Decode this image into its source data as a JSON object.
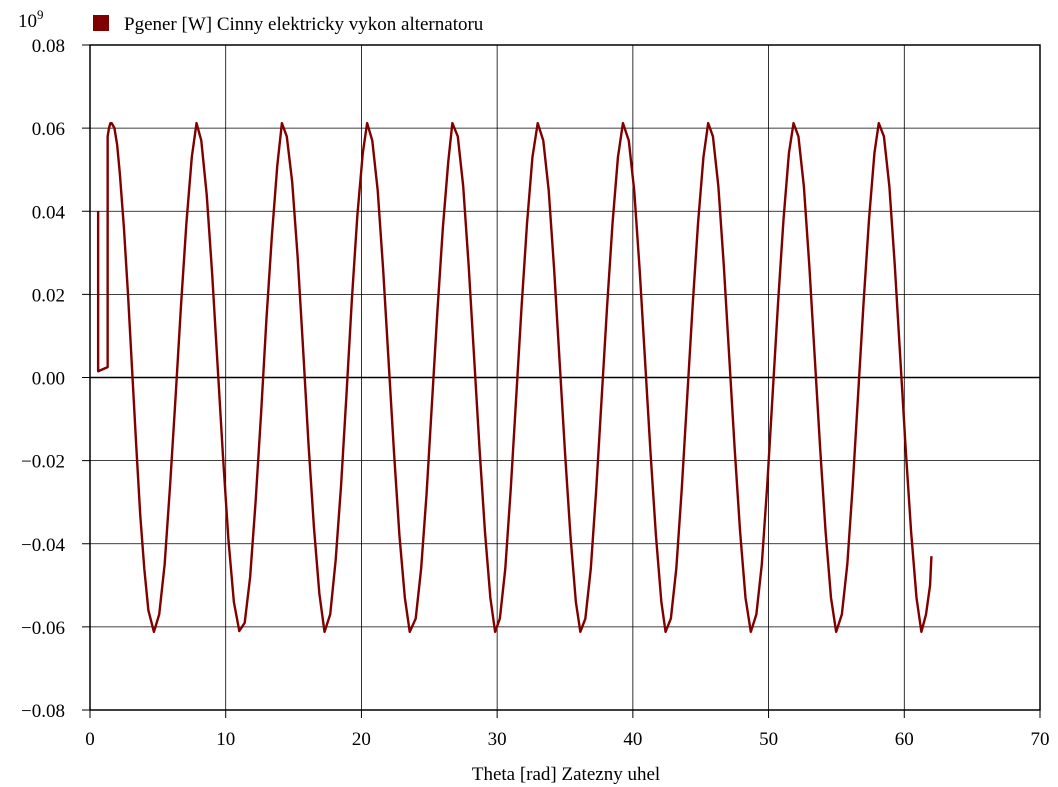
{
  "chart_data": {
    "type": "line",
    "y_multiplier": {
      "base": "10",
      "exponent": "9"
    },
    "xlabel": "Theta [rad] Zatezny uhel",
    "ylabel": "",
    "xlim": [
      0,
      70
    ],
    "ylim": [
      -0.08,
      0.08
    ],
    "x_ticks": [
      0,
      10,
      20,
      30,
      40,
      50,
      60,
      70
    ],
    "x_tick_labels": [
      "0",
      "10",
      "20",
      "30",
      "40",
      "50",
      "60",
      "70"
    ],
    "y_ticks": [
      -0.08,
      -0.06,
      -0.04,
      -0.02,
      0.0,
      0.02,
      0.04,
      0.06,
      0.08
    ],
    "y_tick_labels": [
      "−0.08",
      "−0.06",
      "−0.04",
      "−0.02",
      "0.00",
      "0.02",
      "0.04",
      "0.06",
      "0.08"
    ],
    "grid": true,
    "legend_position": "top-left",
    "series": [
      {
        "name": "Pgener [W] Cinny elektricky vykon alternatoru",
        "color": "#800000",
        "x": [
          0.6,
          0.6,
          0.6,
          1.3,
          1.3,
          1.4,
          1.5,
          1.6,
          1.8,
          2.0,
          2.2,
          2.5,
          2.8,
          3.1,
          3.4,
          3.7,
          4.0,
          4.3,
          4.71,
          5.1,
          5.5,
          5.9,
          6.3,
          6.7,
          7.1,
          7.5,
          7.85,
          8.2,
          8.6,
          9.0,
          9.4,
          9.8,
          10.2,
          10.6,
          11.0,
          11.4,
          11.8,
          12.2,
          12.6,
          13.0,
          13.4,
          13.8,
          14.14,
          14.5,
          14.9,
          15.3,
          15.7,
          16.1,
          16.5,
          16.9,
          17.28,
          17.7,
          18.1,
          18.5,
          18.9,
          19.3,
          19.7,
          20.1,
          20.42,
          20.8,
          21.2,
          21.6,
          22.0,
          22.4,
          22.8,
          23.2,
          23.56,
          24.0,
          24.4,
          24.8,
          25.2,
          25.6,
          26.0,
          26.4,
          26.7,
          27.1,
          27.5,
          27.9,
          28.3,
          28.7,
          29.1,
          29.5,
          29.85,
          30.2,
          30.6,
          31.0,
          31.4,
          31.8,
          32.2,
          32.6,
          32.99,
          33.4,
          33.8,
          34.2,
          34.6,
          35.0,
          35.4,
          35.8,
          36.13,
          36.5,
          36.9,
          37.3,
          37.7,
          38.1,
          38.5,
          38.9,
          39.27,
          39.7,
          40.1,
          40.5,
          40.9,
          41.3,
          41.7,
          42.1,
          42.41,
          42.8,
          43.2,
          43.6,
          44.0,
          44.4,
          44.8,
          45.2,
          45.55,
          45.9,
          46.3,
          46.7,
          47.1,
          47.5,
          47.9,
          48.3,
          48.69,
          49.1,
          49.5,
          49.9,
          50.3,
          50.7,
          51.1,
          51.5,
          51.84,
          52.2,
          52.6,
          53.0,
          53.4,
          53.8,
          54.2,
          54.6,
          54.98,
          55.4,
          55.8,
          56.2,
          56.6,
          57.0,
          57.4,
          57.8,
          58.12,
          58.5,
          58.9,
          59.3,
          59.7,
          60.1,
          60.5,
          60.9,
          61.26,
          61.6,
          61.9,
          62.0
        ],
        "y": [
          0.04,
          0.0015,
          0.0015,
          0.0025,
          0.058,
          0.06,
          0.0612,
          0.0612,
          0.06,
          0.056,
          0.049,
          0.036,
          0.02,
          0.002,
          -0.016,
          -0.033,
          -0.046,
          -0.056,
          -0.0612,
          -0.057,
          -0.045,
          -0.026,
          -0.005,
          0.017,
          0.037,
          0.053,
          0.0612,
          0.057,
          0.044,
          0.025,
          0.003,
          -0.019,
          -0.039,
          -0.054,
          -0.061,
          -0.059,
          -0.048,
          -0.03,
          -0.009,
          0.014,
          0.034,
          0.051,
          0.0612,
          0.058,
          0.047,
          0.029,
          0.007,
          -0.016,
          -0.036,
          -0.052,
          -0.0612,
          -0.057,
          -0.044,
          -0.026,
          -0.004,
          0.019,
          0.039,
          0.054,
          0.0612,
          0.057,
          0.045,
          0.026,
          0.004,
          -0.018,
          -0.038,
          -0.053,
          -0.0612,
          -0.058,
          -0.046,
          -0.028,
          -0.006,
          0.016,
          0.036,
          0.052,
          0.0612,
          0.058,
          0.046,
          0.027,
          0.005,
          -0.017,
          -0.037,
          -0.053,
          -0.0612,
          -0.058,
          -0.046,
          -0.027,
          -0.005,
          0.017,
          0.037,
          0.053,
          0.0612,
          0.057,
          0.045,
          0.026,
          0.004,
          -0.018,
          -0.038,
          -0.054,
          -0.0612,
          -0.058,
          -0.046,
          -0.027,
          -0.005,
          0.017,
          0.037,
          0.053,
          0.0612,
          0.057,
          0.045,
          0.026,
          0.004,
          -0.018,
          -0.038,
          -0.054,
          -0.0612,
          -0.058,
          -0.046,
          -0.027,
          -0.005,
          0.017,
          0.037,
          0.053,
          0.0612,
          0.058,
          0.046,
          0.027,
          0.005,
          -0.017,
          -0.037,
          -0.053,
          -0.0612,
          -0.057,
          -0.045,
          -0.026,
          -0.004,
          0.018,
          0.038,
          0.054,
          0.0612,
          0.058,
          0.046,
          0.027,
          0.005,
          -0.017,
          -0.037,
          -0.053,
          -0.0612,
          -0.057,
          -0.045,
          -0.026,
          -0.004,
          0.018,
          0.038,
          0.054,
          0.0612,
          0.058,
          0.046,
          0.027,
          0.005,
          -0.017,
          -0.037,
          -0.053,
          -0.0612,
          -0.057,
          -0.05,
          -0.043
        ]
      }
    ]
  }
}
